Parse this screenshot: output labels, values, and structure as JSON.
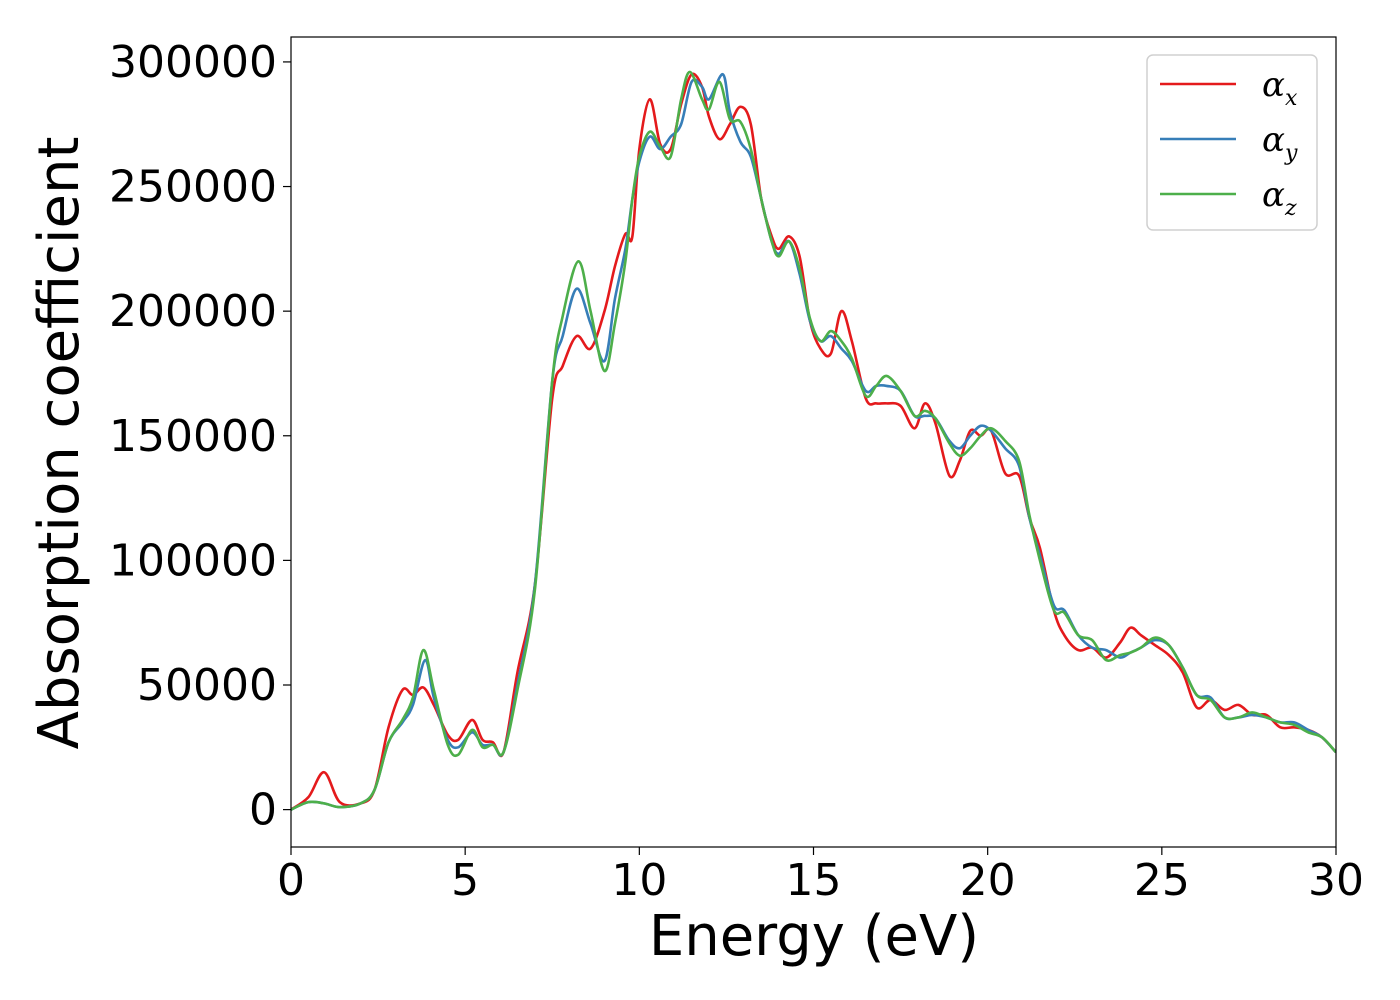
{
  "chart_data": {
    "type": "line",
    "title": "",
    "xlabel": "Energy (eV)",
    "ylabel": "Absorption coefficient",
    "xlim": [
      0,
      30
    ],
    "ylim": [
      -15000,
      310000
    ],
    "xticks": [
      0,
      5,
      10,
      15,
      20,
      25,
      30
    ],
    "yticks": [
      0,
      50000,
      100000,
      150000,
      200000,
      250000,
      300000
    ],
    "grid": false,
    "legend_position": "top-right",
    "series": [
      {
        "name": "αx",
        "symbol": "α",
        "subscript": "x",
        "color": "#e41a1c",
        "x": [
          0,
          0.5,
          0.95,
          1.4,
          2.0,
          2.4,
          2.8,
          3.2,
          3.5,
          3.8,
          4.1,
          4.5,
          4.8,
          5.2,
          5.5,
          5.8,
          6.1,
          6.5,
          7.0,
          7.5,
          7.8,
          8.2,
          8.6,
          9.0,
          9.3,
          9.6,
          9.8,
          10.0,
          10.3,
          10.6,
          10.9,
          11.2,
          11.5,
          11.8,
          12.0,
          12.3,
          12.6,
          12.9,
          13.2,
          13.5,
          13.8,
          14.0,
          14.3,
          14.6,
          14.9,
          15.2,
          15.5,
          15.8,
          16.1,
          16.5,
          16.8,
          17.1,
          17.5,
          17.9,
          18.2,
          18.5,
          18.9,
          19.2,
          19.5,
          19.8,
          20.1,
          20.5,
          20.9,
          21.2,
          21.5,
          21.9,
          22.2,
          22.6,
          23.0,
          23.4,
          23.8,
          24.1,
          24.4,
          24.8,
          25.2,
          25.6,
          26.0,
          26.4,
          26.8,
          27.2,
          27.6,
          28.0,
          28.4,
          28.8,
          29.2,
          29.6,
          30.0
        ],
        "values": [
          0,
          5000,
          15000,
          3000,
          2500,
          8000,
          33000,
          48000,
          46000,
          49000,
          42000,
          30000,
          28000,
          36000,
          28000,
          27000,
          23000,
          55000,
          90000,
          165000,
          178000,
          190000,
          185000,
          200000,
          218000,
          231000,
          230000,
          265000,
          285000,
          267000,
          265000,
          283000,
          295000,
          290000,
          278000,
          269000,
          275000,
          282000,
          275000,
          245000,
          230000,
          225000,
          230000,
          222000,
          196000,
          185000,
          183000,
          200000,
          188000,
          165000,
          163000,
          163000,
          162000,
          153000,
          163000,
          155000,
          134000,
          140000,
          152000,
          150000,
          152000,
          135000,
          134000,
          117000,
          105000,
          80000,
          70000,
          64000,
          65000,
          61000,
          67000,
          73000,
          70000,
          66000,
          62000,
          55000,
          41000,
          44000,
          40000,
          42000,
          38000,
          38000,
          33000,
          33000,
          32000,
          29000,
          23000
        ]
      },
      {
        "name": "αy",
        "symbol": "α",
        "subscript": "y",
        "color": "#377eb8",
        "x": [
          0,
          0.5,
          0.95,
          1.4,
          2.0,
          2.4,
          2.8,
          3.2,
          3.5,
          3.85,
          4.1,
          4.5,
          4.8,
          5.2,
          5.5,
          5.8,
          6.1,
          6.5,
          7.0,
          7.5,
          7.8,
          8.2,
          8.6,
          9.0,
          9.3,
          9.6,
          9.8,
          10.0,
          10.3,
          10.6,
          10.9,
          11.2,
          11.5,
          11.8,
          12.0,
          12.4,
          12.6,
          12.9,
          13.2,
          13.5,
          13.8,
          14.0,
          14.3,
          14.6,
          14.9,
          15.2,
          15.5,
          15.8,
          16.1,
          16.5,
          16.8,
          17.1,
          17.5,
          17.9,
          18.2,
          18.5,
          18.9,
          19.2,
          19.5,
          19.8,
          20.1,
          20.5,
          20.9,
          21.2,
          21.5,
          21.9,
          22.2,
          22.6,
          23.0,
          23.4,
          23.8,
          24.1,
          24.4,
          24.8,
          25.2,
          25.6,
          26.0,
          26.4,
          26.8,
          27.2,
          27.6,
          28.0,
          28.4,
          28.8,
          29.2,
          29.6,
          30.0
        ],
        "values": [
          0,
          3000,
          2500,
          1000,
          2500,
          8000,
          27000,
          35000,
          42000,
          60000,
          45000,
          28000,
          25000,
          31000,
          26000,
          26000,
          23000,
          50000,
          90000,
          172000,
          190000,
          209000,
          195000,
          180000,
          205000,
          225000,
          245000,
          260000,
          270000,
          265000,
          270000,
          275000,
          292000,
          290000,
          285000,
          295000,
          280000,
          268000,
          262000,
          245000,
          228000,
          223000,
          228000,
          215000,
          196000,
          188000,
          190000,
          185000,
          180000,
          168000,
          170000,
          170000,
          168000,
          158000,
          158000,
          157000,
          148000,
          145000,
          150000,
          154000,
          152000,
          145000,
          138000,
          117000,
          102000,
          82000,
          80000,
          70000,
          65000,
          64000,
          61000,
          63000,
          65000,
          68000,
          66000,
          57000,
          46000,
          45000,
          37000,
          37000,
          38000,
          37000,
          35000,
          35000,
          32000,
          29000,
          23000
        ]
      },
      {
        "name": "αz",
        "symbol": "α",
        "subscript": "z",
        "color": "#4daf4a",
        "x": [
          0,
          0.5,
          0.95,
          1.4,
          2.0,
          2.4,
          2.8,
          3.2,
          3.5,
          3.8,
          4.1,
          4.5,
          4.8,
          5.2,
          5.5,
          5.8,
          6.1,
          6.5,
          7.0,
          7.5,
          7.8,
          8.25,
          8.6,
          9.0,
          9.3,
          9.6,
          9.8,
          10.0,
          10.3,
          10.6,
          10.9,
          11.2,
          11.45,
          11.8,
          12.0,
          12.3,
          12.6,
          12.9,
          13.2,
          13.5,
          13.8,
          14.0,
          14.3,
          14.6,
          14.9,
          15.2,
          15.5,
          15.8,
          16.1,
          16.5,
          16.8,
          17.1,
          17.5,
          17.9,
          18.2,
          18.5,
          18.9,
          19.2,
          19.5,
          19.8,
          20.1,
          20.5,
          20.9,
          21.2,
          21.5,
          21.9,
          22.2,
          22.6,
          23.0,
          23.4,
          23.8,
          24.1,
          24.4,
          24.8,
          25.2,
          25.6,
          26.0,
          26.4,
          26.8,
          27.2,
          27.6,
          28.0,
          28.4,
          28.8,
          29.2,
          29.6,
          30.0
        ],
        "values": [
          0,
          3000,
          2500,
          1000,
          2500,
          8000,
          27000,
          36000,
          45000,
          64000,
          48000,
          26000,
          22000,
          32000,
          25000,
          26000,
          23000,
          48000,
          88000,
          172000,
          198000,
          220000,
          200000,
          176000,
          195000,
          220000,
          245000,
          262000,
          272000,
          266000,
          262000,
          285000,
          296000,
          285000,
          281000,
          292000,
          277000,
          276000,
          265000,
          245000,
          228000,
          222000,
          228000,
          217000,
          197000,
          188000,
          192000,
          188000,
          181000,
          166000,
          170000,
          174000,
          168000,
          158000,
          160000,
          157000,
          147000,
          142000,
          145000,
          150000,
          153000,
          148000,
          140000,
          118000,
          100000,
          80000,
          79000,
          70000,
          68000,
          60000,
          62000,
          63000,
          65000,
          69000,
          66000,
          57000,
          46000,
          44000,
          37000,
          37000,
          39000,
          37000,
          35000,
          34000,
          31000,
          29000,
          23000
        ]
      }
    ]
  }
}
